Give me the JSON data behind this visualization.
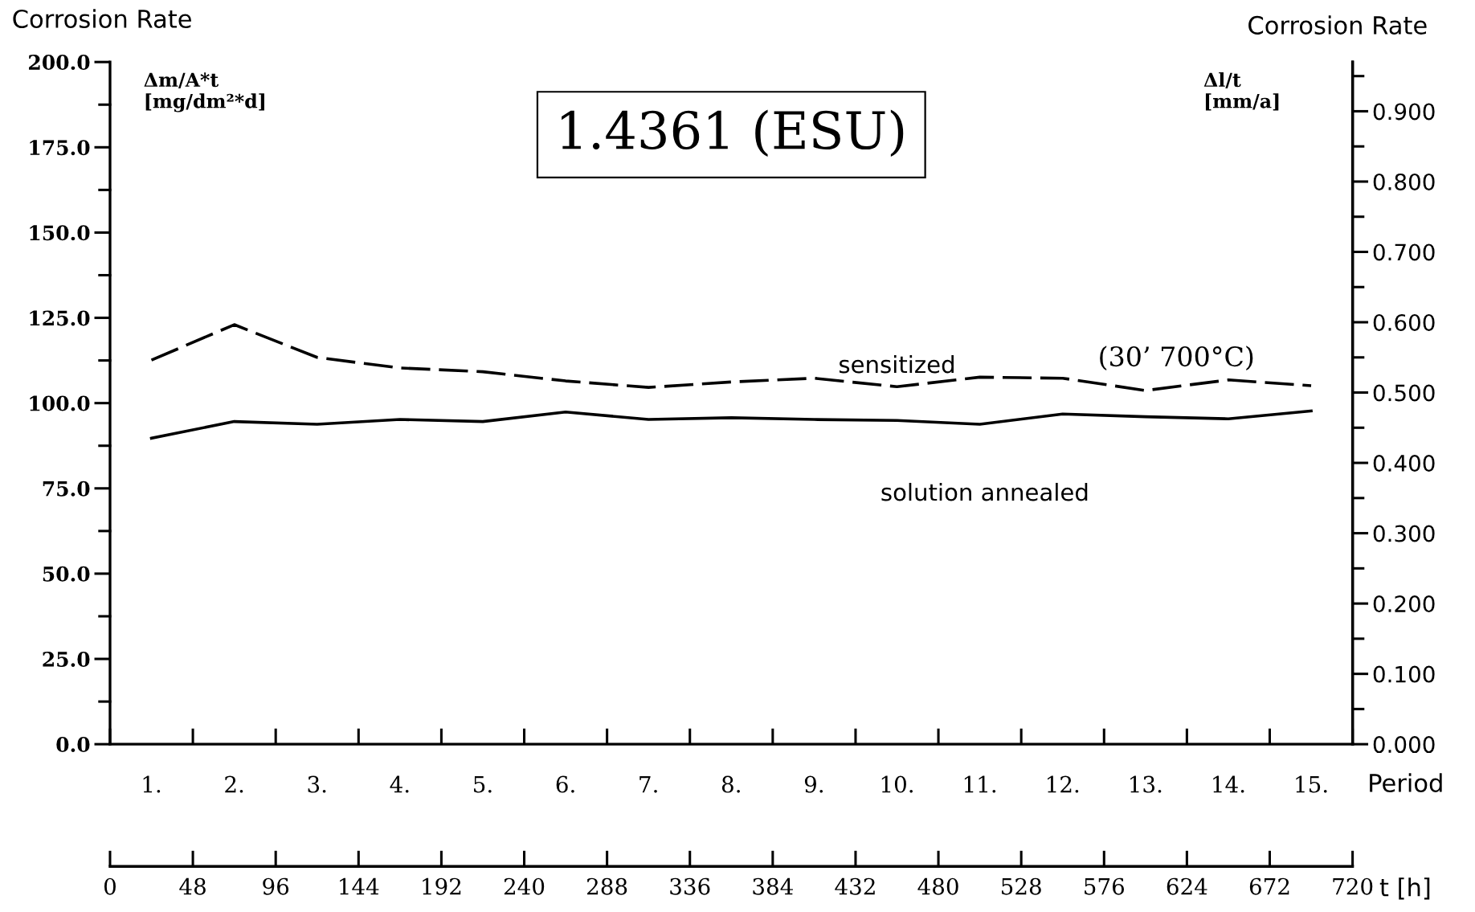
{
  "chart_data": {
    "type": "line",
    "title": "1.4361 (ESU)",
    "ylabel": "Corrosion Rate",
    "y2label": "Corrosion Rate",
    "xlabel": "Period",
    "x2label": "t [h]",
    "categories": [
      "1.",
      "2.",
      "3.",
      "4.",
      "5.",
      "6.",
      "7.",
      "8.",
      "9.",
      "10.",
      "11.",
      "12.",
      "13.",
      "14.",
      "15."
    ],
    "series": [
      {
        "name": "sensitized",
        "color": "#000000",
        "line_style": "dashed",
        "values": [
          112.6,
          123.0,
          113.4,
          110.3,
          109.2,
          106.5,
          104.6,
          106.2,
          107.3,
          104.8,
          107.6,
          107.3,
          103.7,
          106.8,
          105.1
        ]
      },
      {
        "name": "solution annealed",
        "color": "#000000",
        "line_style": "solid",
        "values": [
          89.7,
          94.6,
          93.8,
          95.2,
          94.6,
          97.4,
          95.2,
          95.7,
          95.2,
          94.9,
          93.8,
          96.8,
          96.0,
          95.4,
          97.7
        ]
      }
    ],
    "ylim": [
      0,
      200
    ],
    "yticks": [
      {
        "value": 0,
        "label": "0.0"
      },
      {
        "value": 12.5,
        "label": null
      },
      {
        "value": 25,
        "label": "25.0"
      },
      {
        "value": 37.5,
        "label": null
      },
      {
        "value": 50,
        "label": "50.0"
      },
      {
        "value": 62.5,
        "label": null
      },
      {
        "value": 75,
        "label": "75.0"
      },
      {
        "value": 87.5,
        "label": null
      },
      {
        "value": 100,
        "label": "100.0"
      },
      {
        "value": 112.5,
        "label": null
      },
      {
        "value": 125,
        "label": "125.0"
      },
      {
        "value": 137.5,
        "label": null
      },
      {
        "value": 150,
        "label": "150.0"
      },
      {
        "value": 162.5,
        "label": null
      },
      {
        "value": 175,
        "label": "175.0"
      },
      {
        "value": 187.5,
        "label": null
      },
      {
        "value": 200,
        "label": "200.0"
      }
    ],
    "y2lim": [
      0,
      0.97
    ],
    "y2ticks": [
      {
        "value": 0,
        "label": "0.000"
      },
      {
        "value": 0.05,
        "label": null
      },
      {
        "value": 0.1,
        "label": "0.100"
      },
      {
        "value": 0.15,
        "label": null
      },
      {
        "value": 0.2,
        "label": "0.200"
      },
      {
        "value": 0.25,
        "label": null
      },
      {
        "value": 0.3,
        "label": "0.300"
      },
      {
        "value": 0.35,
        "label": null
      },
      {
        "value": 0.4,
        "label": "0.400"
      },
      {
        "value": 0.45,
        "label": null
      },
      {
        "value": 0.5,
        "label": "0.500"
      },
      {
        "value": 0.55,
        "label": null
      },
      {
        "value": 0.6,
        "label": "0.600"
      },
      {
        "value": 0.65,
        "label": null
      },
      {
        "value": 0.7,
        "label": "0.700"
      },
      {
        "value": 0.75,
        "label": null
      },
      {
        "value": 0.8,
        "label": "0.800"
      },
      {
        "value": 0.85,
        "label": null
      },
      {
        "value": 0.9,
        "label": "0.900"
      },
      {
        "value": 0.95,
        "label": null
      }
    ],
    "x2lim": [
      0,
      720
    ],
    "x2ticks": [
      0,
      48,
      96,
      144,
      192,
      240,
      288,
      336,
      384,
      432,
      480,
      528,
      576,
      624,
      672,
      720
    ],
    "annotations": [
      "(30’ 700°C)",
      "Δm/A*t\n[mg/dm²*d]",
      "Δl/t\n[mm/a]"
    ],
    "grid": false,
    "legend": false
  }
}
